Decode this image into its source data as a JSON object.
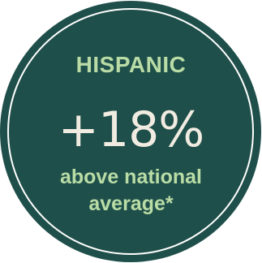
{
  "badge": {
    "category": "HISPANIC",
    "value": "+18%",
    "description_lines": [
      "above national",
      "average*"
    ]
  },
  "colors": {
    "background": "#ffffff",
    "circle_fill": "#1f4f4a",
    "ring": "#ffffff",
    "accent_text": "#b9dca6",
    "value_text": "#f1ece1"
  }
}
